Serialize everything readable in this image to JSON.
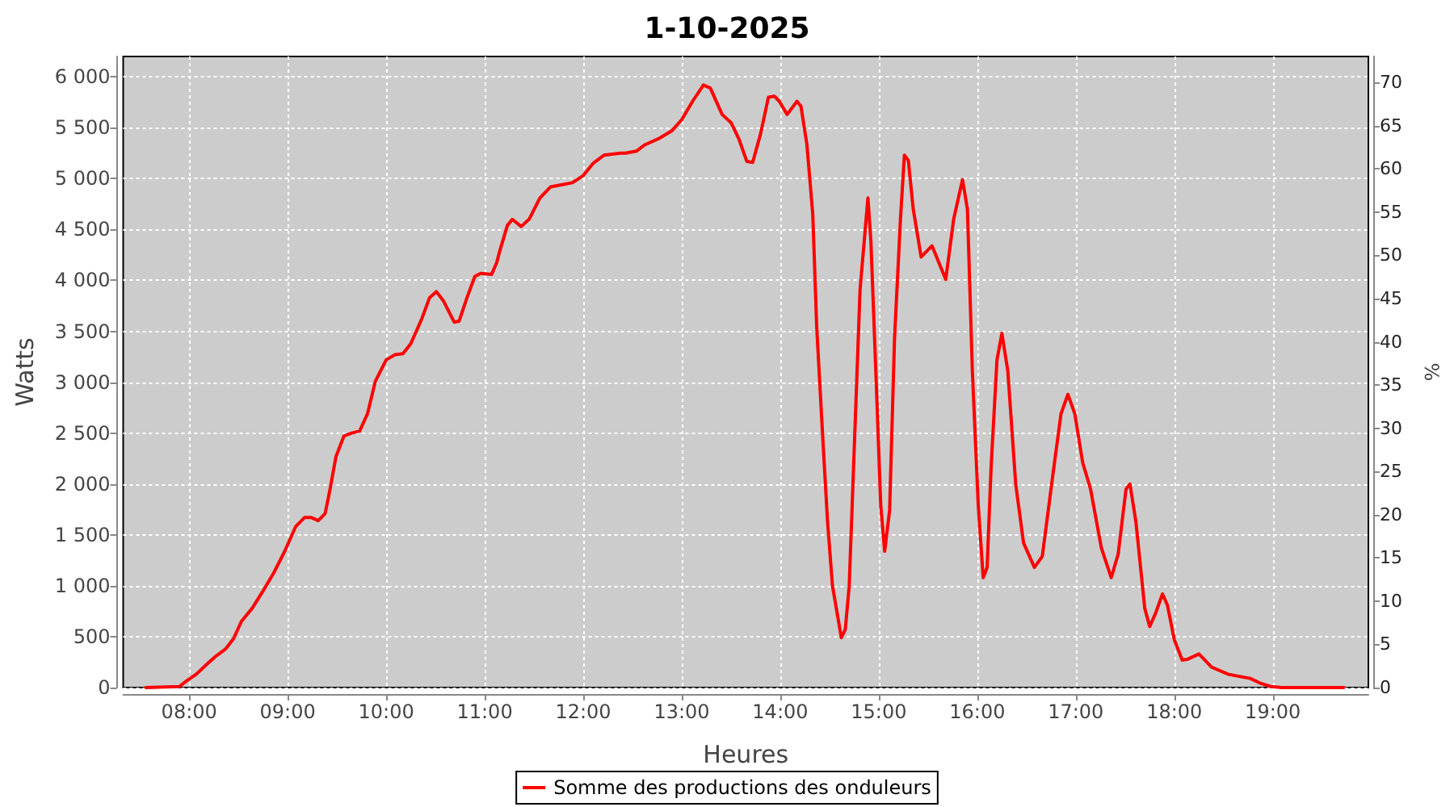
{
  "chart_data": {
    "type": "line",
    "title": "1-10-2025",
    "xlabel": "Heures",
    "ylabel": "Watts",
    "y2label": "%",
    "x": [
      7.56,
      7.9,
      7.98,
      8.07,
      8.18,
      8.26,
      8.37,
      8.45,
      8.53,
      8.64,
      8.75,
      8.86,
      8.97,
      9.08,
      9.17,
      9.24,
      9.31,
      9.38,
      9.43,
      9.49,
      9.57,
      9.65,
      9.73,
      9.81,
      9.89,
      10.0,
      10.09,
      10.17,
      10.25,
      10.36,
      10.44,
      10.51,
      10.58,
      10.69,
      10.74,
      10.82,
      10.9,
      10.96,
      11.07,
      11.12,
      11.15,
      11.23,
      11.28,
      11.37,
      11.45,
      11.56,
      11.67,
      11.78,
      11.89,
      12.0,
      12.1,
      12.21,
      12.38,
      12.43,
      12.54,
      12.62,
      12.76,
      12.9,
      13.0,
      13.11,
      13.22,
      13.29,
      13.41,
      13.5,
      13.58,
      13.66,
      13.72,
      13.8,
      13.88,
      13.94,
      13.99,
      14.07,
      14.17,
      14.21,
      14.27,
      14.33,
      14.37,
      14.43,
      14.48,
      14.53,
      14.62,
      14.66,
      14.7,
      14.75,
      14.81,
      14.89,
      14.92,
      14.97,
      15.02,
      15.06,
      15.11,
      15.16,
      15.22,
      15.26,
      15.3,
      15.35,
      15.43,
      15.54,
      15.68,
      15.76,
      15.85,
      15.9,
      15.95,
      16.01,
      16.06,
      16.1,
      16.14,
      16.2,
      16.25,
      16.31,
      16.39,
      16.47,
      16.58,
      16.66,
      16.77,
      16.85,
      16.92,
      16.99,
      17.07,
      17.15,
      17.26,
      17.36,
      17.43,
      17.51,
      17.55,
      17.61,
      17.7,
      17.75,
      17.81,
      17.88,
      17.93,
      18.0,
      18.08,
      18.14,
      18.25,
      18.38,
      18.55,
      18.77,
      18.88,
      18.98,
      19.09,
      19.72
    ],
    "series": [
      {
        "name": "Somme des productions des onduleurs",
        "color": "#ff0000",
        "values": [
          0,
          10,
          70,
          130,
          230,
          300,
          380,
          480,
          650,
          780,
          950,
          1130,
          1340,
          1580,
          1670,
          1670,
          1640,
          1710,
          1950,
          2270,
          2470,
          2500,
          2520,
          2690,
          3010,
          3220,
          3270,
          3280,
          3380,
          3620,
          3830,
          3890,
          3800,
          3590,
          3600,
          3830,
          4040,
          4070,
          4060,
          4170,
          4280,
          4540,
          4600,
          4530,
          4600,
          4810,
          4920,
          4940,
          4960,
          5030,
          5150,
          5230,
          5250,
          5250,
          5270,
          5330,
          5390,
          5470,
          5580,
          5760,
          5920,
          5890,
          5630,
          5550,
          5390,
          5170,
          5160,
          5440,
          5800,
          5810,
          5760,
          5630,
          5760,
          5710,
          5340,
          4650,
          3540,
          2480,
          1630,
          1000,
          490,
          570,
          1000,
          2320,
          3910,
          4810,
          4390,
          3110,
          1790,
          1340,
          1740,
          3430,
          4600,
          5230,
          5180,
          4700,
          4230,
          4340,
          4010,
          4600,
          4990,
          4700,
          3110,
          1790,
          1080,
          1180,
          2160,
          3220,
          3480,
          3110,
          2000,
          1420,
          1180,
          1290,
          2110,
          2690,
          2880,
          2690,
          2210,
          1950,
          1370,
          1080,
          1310,
          1950,
          2000,
          1630,
          780,
          600,
          730,
          920,
          810,
          470,
          270,
          280,
          330,
          200,
          130,
          90,
          40,
          10,
          0,
          0
        ]
      }
    ],
    "xlim": [
      7.33,
      19.97
    ],
    "xticks": [
      {
        "value": 8,
        "label": "08:00"
      },
      {
        "value": 9,
        "label": "09:00"
      },
      {
        "value": 10,
        "label": "10:00"
      },
      {
        "value": 11,
        "label": "11:00"
      },
      {
        "value": 12,
        "label": "12:00"
      },
      {
        "value": 13,
        "label": "13:00"
      },
      {
        "value": 14,
        "label": "14:00"
      },
      {
        "value": 15,
        "label": "15:00"
      },
      {
        "value": 16,
        "label": "16:00"
      },
      {
        "value": 17,
        "label": "17:00"
      },
      {
        "value": 18,
        "label": "18:00"
      },
      {
        "value": 19,
        "label": "19:00"
      }
    ],
    "ylim": [
      0,
      6200
    ],
    "yticks": [
      0,
      500,
      {
        "value": 1000,
        "label": "1 000"
      },
      {
        "value": 1500,
        "label": "1 500"
      },
      {
        "value": 2000,
        "label": "2 000"
      },
      {
        "value": 2500,
        "label": "2 500"
      },
      {
        "value": 3000,
        "label": "3 000"
      },
      {
        "value": 3500,
        "label": "3 500"
      },
      {
        "value": 4000,
        "label": "4 000"
      },
      {
        "value": 4500,
        "label": "4 500"
      },
      {
        "value": 5000,
        "label": "5 000"
      },
      {
        "value": 5500,
        "label": "5 500"
      },
      {
        "value": 6000,
        "label": "6 000"
      }
    ],
    "y2lim": [
      0,
      73
    ],
    "y2ticks": [
      0,
      5,
      10,
      15,
      20,
      25,
      30,
      35,
      40,
      45,
      50,
      55,
      60,
      65,
      70
    ],
    "grid": true,
    "legend": "bottom",
    "marker": "none",
    "line_style": "solid"
  }
}
